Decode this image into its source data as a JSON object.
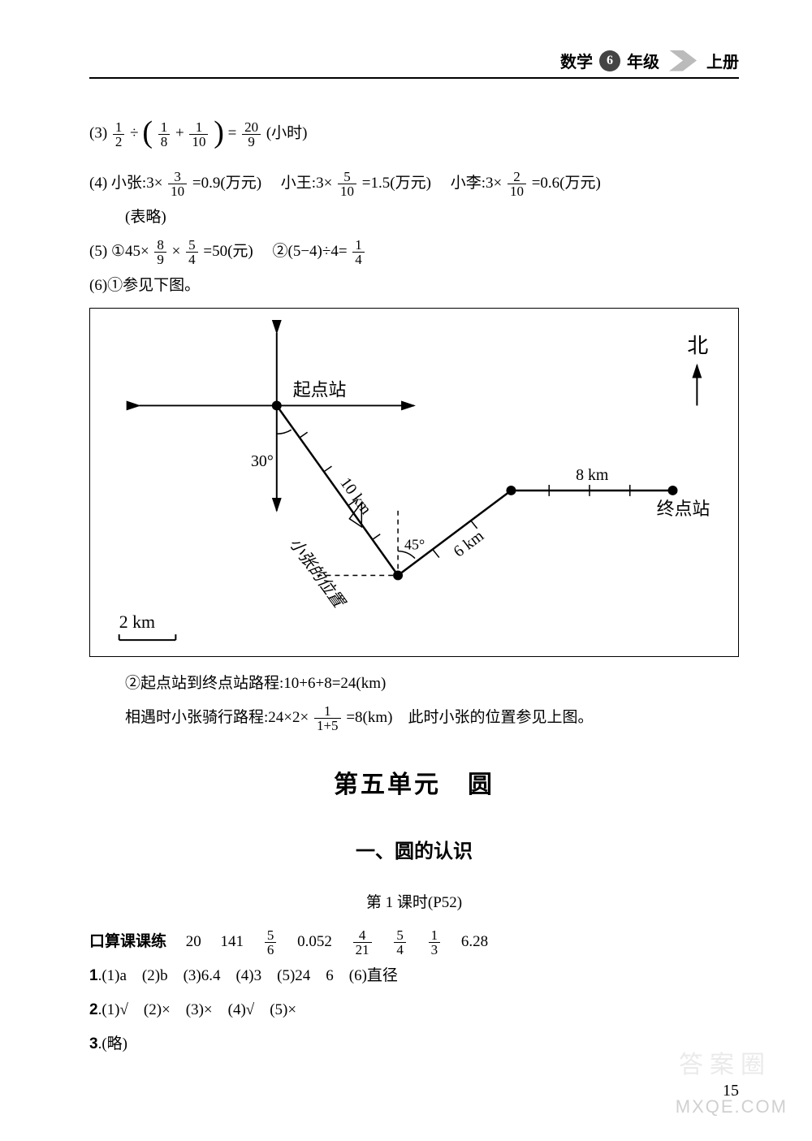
{
  "header": {
    "subject": "数学",
    "grade_num": "6",
    "grade_suffix": "年级",
    "volume": "上册"
  },
  "answers": {
    "q3": {
      "prefix": "(3)",
      "a": "1",
      "b": "2",
      "c": "1",
      "d": "8",
      "e": "1",
      "f": "10",
      "g": "20",
      "h": "9",
      "unit": "(小时)"
    },
    "q4": {
      "prefix": "(4)",
      "zhang_label": "小张:",
      "zhang_mult": "3×",
      "zhang_n": "3",
      "zhang_d": "10",
      "zhang_res": "=0.9(万元)",
      "wang_label": "小王:",
      "wang_mult": "3×",
      "wang_n": "5",
      "wang_d": "10",
      "wang_res": "=1.5(万元)",
      "li_label": "小李:",
      "li_mult": "3×",
      "li_n": "2",
      "li_d": "10",
      "li_res": "=0.6(万元)",
      "note": "(表略)"
    },
    "q5": {
      "prefix": "(5)",
      "p1": "①45×",
      "p1n1": "8",
      "p1d1": "9",
      "p1mid": "×",
      "p1n2": "5",
      "p1d2": "4",
      "p1res": "=50(元)",
      "p2": "②(5−4)÷4=",
      "p2n": "1",
      "p2d": "4"
    },
    "q6": {
      "prefix": "(6)①参见下图。"
    },
    "diagram": {
      "north": "北",
      "start": "起点站",
      "angle1": "30°",
      "seg1": "10 km",
      "zhang_pos": "小张的位置",
      "angle2": "45°",
      "seg2": "6 km",
      "seg3": "8 km",
      "end": "终点站",
      "scale": "2 km",
      "colors": {
        "line": "#000000",
        "fill": "#000000"
      }
    },
    "q6b": {
      "line1": "②起点站到终点站路程:10+6+8=24(km)",
      "line2a": "相遇时小张骑行路程:24×2×",
      "line2n": "1",
      "line2d": "1+5",
      "line2b": "=8(km)　此时小张的位置参见上图。"
    }
  },
  "unit": {
    "title": "第五单元　圆",
    "sub": "一、圆的认识",
    "lesson": "第 1 课时(P52)"
  },
  "kousuan": {
    "label": "口算课课练",
    "v1": "20",
    "v2": "141",
    "f1n": "5",
    "f1d": "6",
    "v3": "0.052",
    "f2n": "4",
    "f2d": "21",
    "f3n": "5",
    "f3d": "4",
    "f4n": "1",
    "f4d": "3",
    "v4": "6.28"
  },
  "probs": {
    "p1": "1.(1)a　(2)b　(3)6.4　(4)3　(5)24　6　(6)直径",
    "p2": "2.(1)√　(2)×　(3)×　(4)√　(5)×",
    "p3": "3.(略)"
  },
  "page": "15",
  "watermark_cn": "答案圈",
  "watermark_en": "MXQE.COM"
}
